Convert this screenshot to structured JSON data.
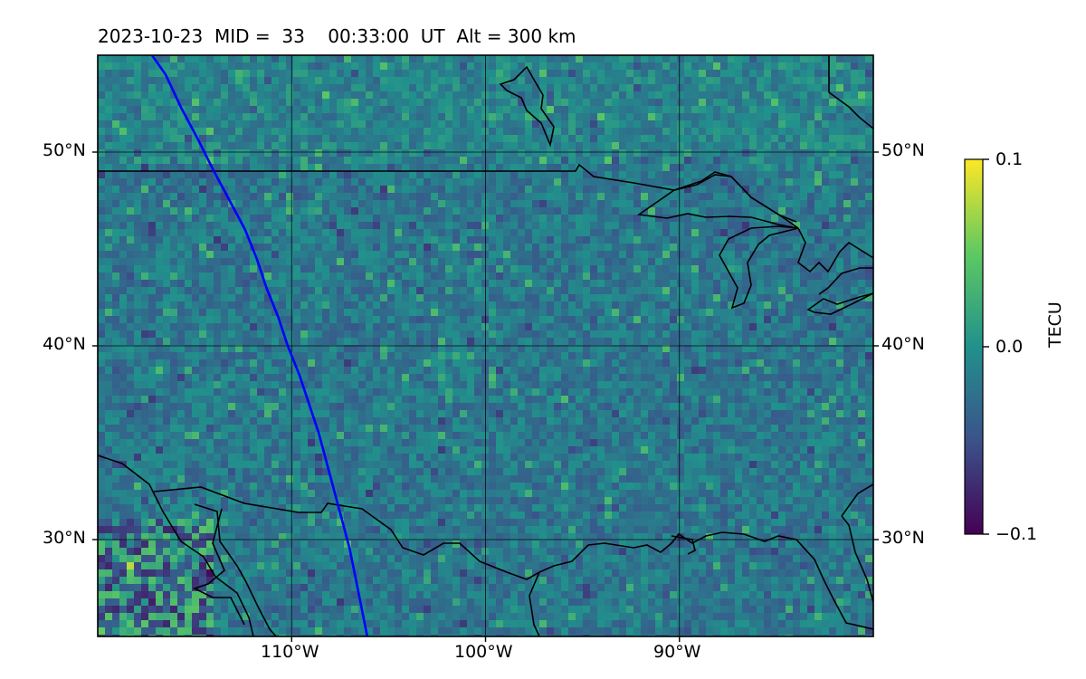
{
  "title": {
    "date": "2023-10-23",
    "mid_label": "MID =",
    "mid_value": "33",
    "time": "00:33:00",
    "time_unit": "UT",
    "alt_label": "Alt = 300 km"
  },
  "map": {
    "lon_range": [
      -120,
      -80
    ],
    "lat_range": [
      25,
      55
    ],
    "grid_lons": [
      -110,
      -100,
      -90
    ],
    "grid_lats": [
      30,
      40,
      50
    ],
    "lon_tick_labels": [
      "110°W",
      "100°W",
      "90°W"
    ],
    "lat_tick_labels": [
      "30°N",
      "40°N",
      "50°N"
    ],
    "track_color": "#0000ff",
    "track_points": [
      [
        -117.2,
        55
      ],
      [
        -116.5,
        54
      ],
      [
        -115.7,
        52.3
      ],
      [
        -114.8,
        50.6
      ],
      [
        -114.0,
        49
      ],
      [
        -113.2,
        47.5
      ],
      [
        -112.4,
        46
      ],
      [
        -111.8,
        44.5
      ],
      [
        -111.3,
        43
      ],
      [
        -110.7,
        41.5
      ],
      [
        -110.2,
        40
      ],
      [
        -109.6,
        38.5
      ],
      [
        -109.1,
        37
      ],
      [
        -108.6,
        35.5
      ],
      [
        -108.2,
        34
      ],
      [
        -107.8,
        32.5
      ],
      [
        -107.4,
        31
      ],
      [
        -107.0,
        29.5
      ],
      [
        -106.7,
        28
      ],
      [
        -106.4,
        26.5
      ],
      [
        -106.1,
        25
      ]
    ]
  },
  "colorbar": {
    "label": "TECU",
    "ticks": [
      "0.1",
      "0.0",
      "−0.1"
    ],
    "vmin": -0.1,
    "vmax": 0.1,
    "colormap": [
      "#440154",
      "#3b528b",
      "#21918c",
      "#5ec962",
      "#fde725"
    ]
  }
}
